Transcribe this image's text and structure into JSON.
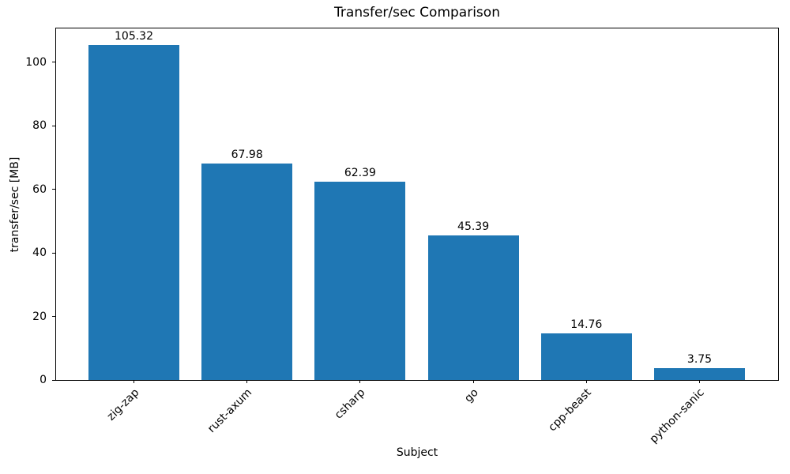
{
  "chart_data": {
    "type": "bar",
    "title": "Transfer/sec Comparison",
    "xlabel": "Subject",
    "ylabel": "transfer/sec [MB]",
    "categories": [
      "zig-zap",
      "rust-axum",
      "csharp",
      "go",
      "cpp-beast",
      "python-sanic"
    ],
    "values": [
      105.32,
      67.98,
      62.39,
      45.39,
      14.76,
      3.75
    ],
    "bar_labels": [
      "105.32",
      "67.98",
      "62.39",
      "45.39",
      "14.76",
      "3.75"
    ],
    "yticks": [
      0,
      20,
      40,
      60,
      80,
      100
    ],
    "ylim": [
      0,
      110.6
    ],
    "bar_color": "#1f77b4",
    "axis_color": "#000000",
    "background_color": "#ffffff",
    "grid": false,
    "legend_position": "none",
    "x_tick_rotation_deg": 45
  }
}
